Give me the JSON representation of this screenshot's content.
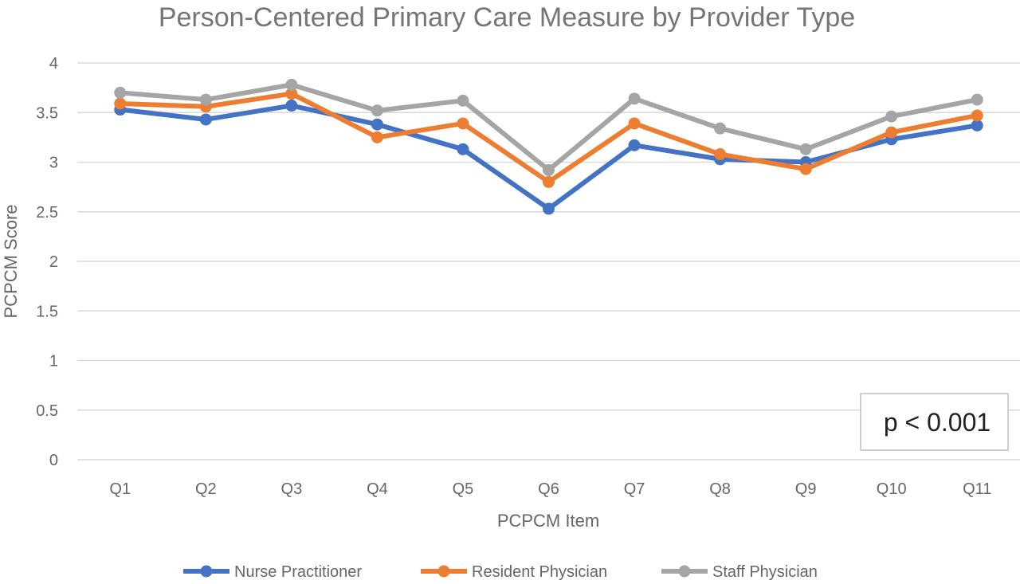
{
  "chart_data": {
    "type": "line",
    "title": "Person-Centered Primary Care Measure by Provider Type",
    "xlabel": "PCPCM Item",
    "ylabel": "PCPCM Score",
    "ylim": [
      0,
      4
    ],
    "yticks": [
      "0",
      "0.5",
      "1",
      "1.5",
      "2",
      "2.5",
      "3",
      "3.5",
      "4"
    ],
    "categories": [
      "Q1",
      "Q2",
      "Q3",
      "Q4",
      "Q5",
      "Q6",
      "Q7",
      "Q8",
      "Q9",
      "Q10",
      "Q11"
    ],
    "grid": true,
    "legend_position": "bottom",
    "series": [
      {
        "name": "Nurse Practitioner",
        "color": "#4472C4",
        "values": [
          3.53,
          3.43,
          3.57,
          3.38,
          3.13,
          2.53,
          3.17,
          3.03,
          3.0,
          3.23,
          3.37
        ]
      },
      {
        "name": "Resident Physician",
        "color": "#ED7D31",
        "values": [
          3.59,
          3.56,
          3.69,
          3.25,
          3.39,
          2.8,
          3.39,
          3.08,
          2.93,
          3.3,
          3.47
        ]
      },
      {
        "name": "Staff Physician",
        "color": "#A5A5A5",
        "values": [
          3.7,
          3.63,
          3.78,
          3.52,
          3.62,
          2.92,
          3.64,
          3.34,
          3.13,
          3.46,
          3.63
        ]
      }
    ],
    "annotation": "p < 0.001"
  }
}
